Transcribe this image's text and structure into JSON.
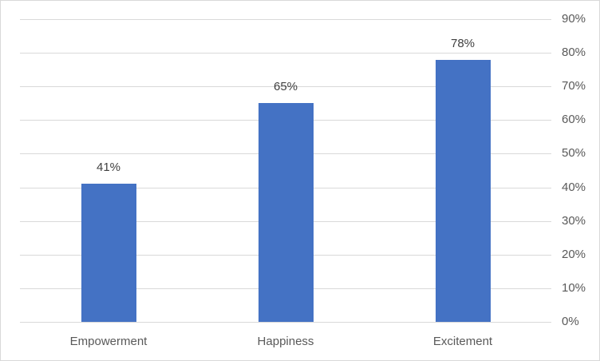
{
  "chart_data": {
    "type": "bar",
    "title": "",
    "xlabel": "",
    "ylabel": "",
    "categories": [
      "Empowerment",
      "Happiness",
      "Excitement"
    ],
    "values": [
      41,
      65,
      78
    ],
    "data_labels": [
      "41%",
      "65%",
      "78%"
    ],
    "ylim": [
      0,
      90
    ],
    "y_ticks": [
      "0%",
      "10%",
      "20%",
      "30%",
      "40%",
      "50%",
      "60%",
      "70%",
      "80%",
      "90%"
    ],
    "y_axis_position": "right",
    "grid": true,
    "legend": "none",
    "bar_color": "#4472c4"
  }
}
